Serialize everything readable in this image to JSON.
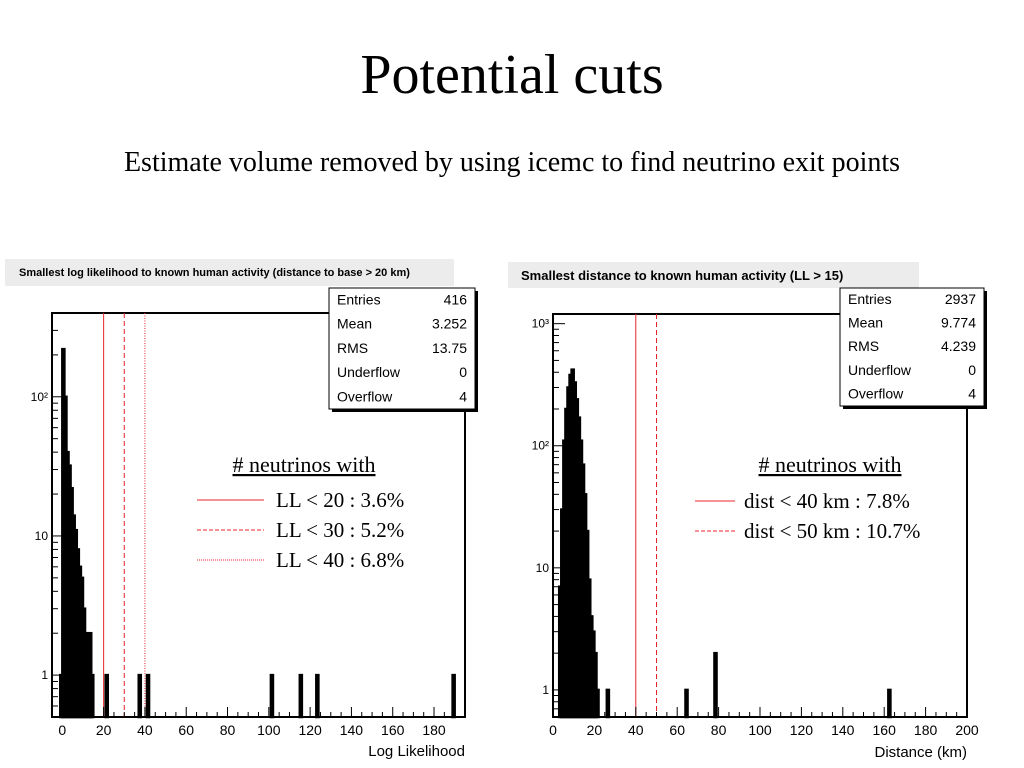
{
  "slide": {
    "title": "Potential cuts",
    "subtitle": "Estimate volume removed by using icemc to find neutrino exit points"
  },
  "colors": {
    "cut_line": "#e8242b",
    "hist": "#000000",
    "title_bg": "#ececec"
  },
  "chart_data": [
    {
      "type": "bar",
      "title": "Smallest log likelihood to known human activity (distance to base > 20 km)",
      "xlabel": "Log Likelihood",
      "ylabel": "",
      "xlim": [
        -5,
        195
      ],
      "ylim": [
        0.5,
        400
      ],
      "log_y": true,
      "x_ticks": [
        0,
        20,
        40,
        60,
        80,
        100,
        120,
        140,
        160,
        180
      ],
      "y_ticks": [
        {
          "value": 1,
          "label": "1"
        },
        {
          "value": 10,
          "label": "10"
        },
        {
          "value": 100,
          "label": "10²"
        }
      ],
      "bins": [
        {
          "x": [
            -1,
            0
          ],
          "y": 1
        },
        {
          "x": [
            0,
            1
          ],
          "y": 220
        },
        {
          "x": [
            1,
            2
          ],
          "y": 100
        },
        {
          "x": [
            2,
            3
          ],
          "y": 40
        },
        {
          "x": [
            3,
            4
          ],
          "y": 32
        },
        {
          "x": [
            4,
            5
          ],
          "y": 22
        },
        {
          "x": [
            5,
            6
          ],
          "y": 14
        },
        {
          "x": [
            6,
            7
          ],
          "y": 11
        },
        {
          "x": [
            7,
            8
          ],
          "y": 8
        },
        {
          "x": [
            8,
            9
          ],
          "y": 6
        },
        {
          "x": [
            9,
            10
          ],
          "y": 5
        },
        {
          "x": [
            10,
            11
          ],
          "y": 3
        },
        {
          "x": [
            11,
            12
          ],
          "y": 2
        },
        {
          "x": [
            12,
            13
          ],
          "y": 2
        },
        {
          "x": [
            13,
            14
          ],
          "y": 2
        },
        {
          "x": [
            14,
            15
          ],
          "y": 1
        },
        {
          "x": [
            21,
            22
          ],
          "y": 1
        },
        {
          "x": [
            37,
            38
          ],
          "y": 1
        },
        {
          "x": [
            41,
            42
          ],
          "y": 1
        },
        {
          "x": [
            101,
            102
          ],
          "y": 1
        },
        {
          "x": [
            115,
            116
          ],
          "y": 1
        },
        {
          "x": [
            123,
            124
          ],
          "y": 1
        },
        {
          "x": [
            189,
            190
          ],
          "y": 1
        }
      ],
      "cut_lines": [
        {
          "x": 20,
          "style": "solid"
        },
        {
          "x": 30,
          "style": "dashed"
        },
        {
          "x": 40,
          "style": "dotted"
        }
      ],
      "stats": [
        {
          "label": "Entries",
          "value": "416"
        },
        {
          "label": "Mean",
          "value": "3.252"
        },
        {
          "label": "RMS",
          "value": "13.75"
        },
        {
          "label": "Underflow",
          "value": "0"
        },
        {
          "label": "Overflow",
          "value": "4"
        }
      ],
      "legend": {
        "heading": "# neutrinos with",
        "entries": [
          {
            "label": "LL < 20 : 3.6%",
            "style": "solid"
          },
          {
            "label": "LL < 30 : 5.2%",
            "style": "dashed"
          },
          {
            "label": "LL < 40 : 6.8%",
            "style": "dotted"
          }
        ]
      }
    },
    {
      "type": "bar",
      "title": "Smallest distance to known human activity (LL > 15)",
      "xlabel": "Distance (km)",
      "ylabel": "",
      "xlim": [
        0,
        200
      ],
      "ylim": [
        0.6,
        1200
      ],
      "log_y": true,
      "x_ticks": [
        0,
        20,
        40,
        60,
        80,
        100,
        120,
        140,
        160,
        180,
        200
      ],
      "y_ticks": [
        {
          "value": 1,
          "label": "1"
        },
        {
          "value": 10,
          "label": "10"
        },
        {
          "value": 100,
          "label": "10²"
        },
        {
          "value": 1000,
          "label": "10³"
        }
      ],
      "bins": [
        {
          "x": [
            3,
            4
          ],
          "y": 7
        },
        {
          "x": [
            4,
            5
          ],
          "y": 30
        },
        {
          "x": [
            5,
            6
          ],
          "y": 110
        },
        {
          "x": [
            6,
            7
          ],
          "y": 200
        },
        {
          "x": [
            7,
            8
          ],
          "y": 300
        },
        {
          "x": [
            8,
            9
          ],
          "y": 380
        },
        {
          "x": [
            9,
            10
          ],
          "y": 420
        },
        {
          "x": [
            10,
            11
          ],
          "y": 330
        },
        {
          "x": [
            11,
            12
          ],
          "y": 240
        },
        {
          "x": [
            12,
            13
          ],
          "y": 170
        },
        {
          "x": [
            13,
            14
          ],
          "y": 110
        },
        {
          "x": [
            14,
            15
          ],
          "y": 70
        },
        {
          "x": [
            15,
            16
          ],
          "y": 40
        },
        {
          "x": [
            16,
            17
          ],
          "y": 20
        },
        {
          "x": [
            17,
            18
          ],
          "y": 8
        },
        {
          "x": [
            18,
            19
          ],
          "y": 4
        },
        {
          "x": [
            19,
            20
          ],
          "y": 3
        },
        {
          "x": [
            20,
            21
          ],
          "y": 2
        },
        {
          "x": [
            21,
            22
          ],
          "y": 1
        },
        {
          "x": [
            26,
            27
          ],
          "y": 1
        },
        {
          "x": [
            64,
            65
          ],
          "y": 1
        },
        {
          "x": [
            78,
            79
          ],
          "y": 2
        },
        {
          "x": [
            162,
            163
          ],
          "y": 1
        }
      ],
      "cut_lines": [
        {
          "x": 40,
          "style": "solid"
        },
        {
          "x": 50,
          "style": "dashed"
        }
      ],
      "stats": [
        {
          "label": "Entries",
          "value": "2937"
        },
        {
          "label": "Mean",
          "value": "9.774"
        },
        {
          "label": "RMS",
          "value": "4.239"
        },
        {
          "label": "Underflow",
          "value": "0"
        },
        {
          "label": "Overflow",
          "value": "4"
        }
      ],
      "legend": {
        "heading": "# neutrinos with",
        "entries": [
          {
            "label": "dist < 40 km : 7.8%",
            "style": "solid"
          },
          {
            "label": "dist < 50 km : 10.7%",
            "style": "dashed"
          }
        ]
      }
    }
  ]
}
